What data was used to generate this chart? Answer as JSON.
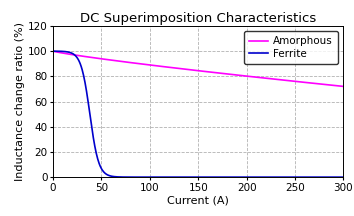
{
  "title": "DC Superimposition Characteristics",
  "xlabel": "Current (A)",
  "ylabel": "Inductance change ratio (%)",
  "xlim": [
    0,
    300
  ],
  "ylim": [
    0,
    120
  ],
  "xticks": [
    0,
    50,
    100,
    150,
    200,
    250,
    300
  ],
  "yticks": [
    0,
    20,
    40,
    60,
    80,
    100,
    120
  ],
  "amorphous_color": "#FF00FF",
  "ferrite_color": "#0000CC",
  "legend_entries": [
    "Amorphous",
    "Ferrite"
  ],
  "background_color": "#FFFFFF",
  "plot_bg_color": "#FFFFFF",
  "grid_color": "#AAAAAA",
  "title_fontsize": 9.5,
  "label_fontsize": 8,
  "tick_fontsize": 7.5,
  "legend_fontsize": 7.5,
  "ferrite_midpoint": 38,
  "ferrite_steepness": 0.22,
  "amorphous_start": 100,
  "amorphous_end": 72
}
